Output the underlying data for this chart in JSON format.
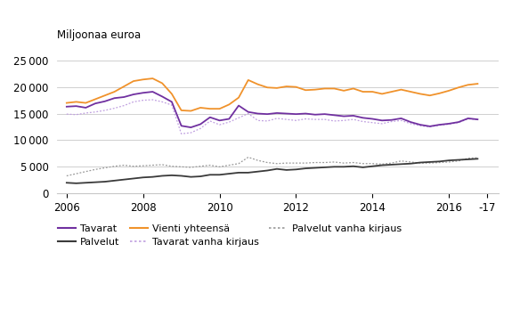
{
  "title": "Miljoonaa euroa",
  "ylim": [
    0,
    27000
  ],
  "yticks": [
    0,
    5000,
    10000,
    15000,
    20000,
    25000
  ],
  "xlabel_ticks": [
    "2006",
    "2008",
    "2010",
    "2012",
    "2014",
    "2016",
    "-17"
  ],
  "xtick_positions": [
    2006,
    2008,
    2010,
    2012,
    2014,
    2016,
    2017.0
  ],
  "xlim": [
    2005.75,
    2017.3
  ],
  "background_color": "#ffffff",
  "grid_color": "#c8c8c8",
  "color_tavarat": "#7030a0",
  "color_palvelut": "#3a3a3a",
  "color_vienti": "#f0922b",
  "color_tavarat_vanha": "#c0a0e0",
  "color_palvelut_vanha": "#999999",
  "tavarat": [
    16300,
    16400,
    16100,
    16900,
    17300,
    17900,
    18100,
    18600,
    18900,
    19100,
    18200,
    17200,
    12700,
    12400,
    13000,
    14300,
    13700,
    14000,
    16500,
    15300,
    15000,
    14900,
    15100,
    15000,
    14900,
    15000,
    14800,
    14900,
    14700,
    14500,
    14600,
    14200,
    14000,
    13700,
    13800,
    14100,
    13400,
    12900,
    12600,
    12900,
    13100,
    13400,
    14100,
    13900
  ],
  "palvelut": [
    2000,
    1900,
    2000,
    2100,
    2200,
    2400,
    2600,
    2800,
    3000,
    3100,
    3300,
    3400,
    3300,
    3100,
    3200,
    3500,
    3500,
    3700,
    3900,
    3900,
    4100,
    4300,
    4600,
    4400,
    4500,
    4700,
    4800,
    4900,
    5000,
    5000,
    5100,
    4900,
    5100,
    5300,
    5400,
    5500,
    5600,
    5800,
    5900,
    6000,
    6200,
    6300,
    6400,
    6500
  ],
  "vienti": [
    17000,
    17200,
    17000,
    17700,
    18400,
    19100,
    20100,
    21100,
    21400,
    21600,
    20700,
    18700,
    15600,
    15500,
    16100,
    15900,
    15900,
    16700,
    18000,
    21300,
    20500,
    19900,
    19800,
    20100,
    20000,
    19400,
    19500,
    19700,
    19700,
    19300,
    19700,
    19100,
    19100,
    18700,
    19100,
    19500,
    19100,
    18700,
    18400,
    18800,
    19300,
    19900,
    20400,
    20600
  ],
  "tavarat_vanha": [
    14900,
    14800,
    15100,
    15300,
    15600,
    16000,
    16500,
    17200,
    17500,
    17600,
    17200,
    16600,
    11200,
    11400,
    12200,
    13600,
    12900,
    13400,
    14200,
    15000,
    13700,
    13600,
    14100,
    13900,
    13700,
    14000,
    13900,
    13900,
    13600,
    13700,
    13900,
    13500,
    13300,
    13100,
    13500,
    13700,
    13100,
    12700,
    12500,
    12800,
    13000,
    13300,
    14000,
    13900
  ],
  "palvelut_vanha": [
    3300,
    3700,
    4100,
    4500,
    4800,
    5100,
    5300,
    5100,
    5200,
    5300,
    5400,
    5100,
    5000,
    4900,
    5100,
    5300,
    5000,
    5300,
    5600,
    6800,
    6200,
    5800,
    5600,
    5700,
    5700,
    5700,
    5800,
    5800,
    5900,
    5700,
    5800,
    5600,
    5600,
    5500,
    5700,
    6100,
    5900,
    5700,
    5700,
    5800,
    5900,
    6100,
    6600,
    6700
  ]
}
